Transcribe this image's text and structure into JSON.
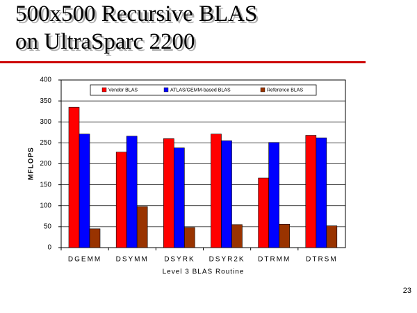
{
  "slide": {
    "title_lines": [
      "500x500 Recursive BLAS",
      "on UltraSparc 2200"
    ],
    "page_number": 23
  },
  "chart_data": {
    "type": "bar",
    "categories": [
      "DGEMM",
      "DSYMM",
      "DSYRK",
      "DSYR2K",
      "DTRMM",
      "DTRSM"
    ],
    "series": [
      {
        "name": "Vendor BLAS",
        "color": "#ff0000",
        "values": [
          335,
          228,
          260,
          271,
          166,
          268
        ]
      },
      {
        "name": "ATLAS/GEMM-based BLAS",
        "color": "#0000ff",
        "values": [
          271,
          266,
          238,
          255,
          251,
          262
        ]
      },
      {
        "name": "Reference BLAS",
        "color": "#993300",
        "values": [
          45,
          98,
          48,
          55,
          56,
          52
        ]
      }
    ],
    "x_label": "Level 3 BLAS Routine",
    "y_label": "MFLOPS",
    "ylim": [
      0,
      400
    ],
    "yticks": [
      0,
      50,
      100,
      150,
      200,
      250,
      300,
      350,
      400
    ],
    "grid": true,
    "legend": "top"
  }
}
